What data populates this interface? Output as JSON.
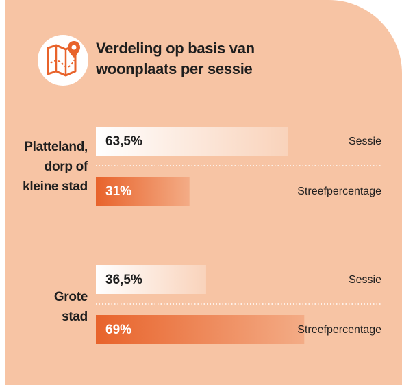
{
  "chart_data": {
    "type": "bar",
    "title": "Verdeling op basis van woonplaats per sessie",
    "categories": [
      "Platteland, dorp of kleine stad",
      "Grote stad"
    ],
    "series": [
      {
        "name": "Sessie",
        "color": "#ffffff",
        "values": [
          63.5,
          36.5
        ],
        "value_labels": [
          "63,5%",
          "36,5%"
        ]
      },
      {
        "name": "Streefpercentage",
        "color": "#e8632b",
        "values": [
          31,
          69
        ],
        "value_labels": [
          "31%",
          "69%"
        ]
      }
    ]
  }
}
